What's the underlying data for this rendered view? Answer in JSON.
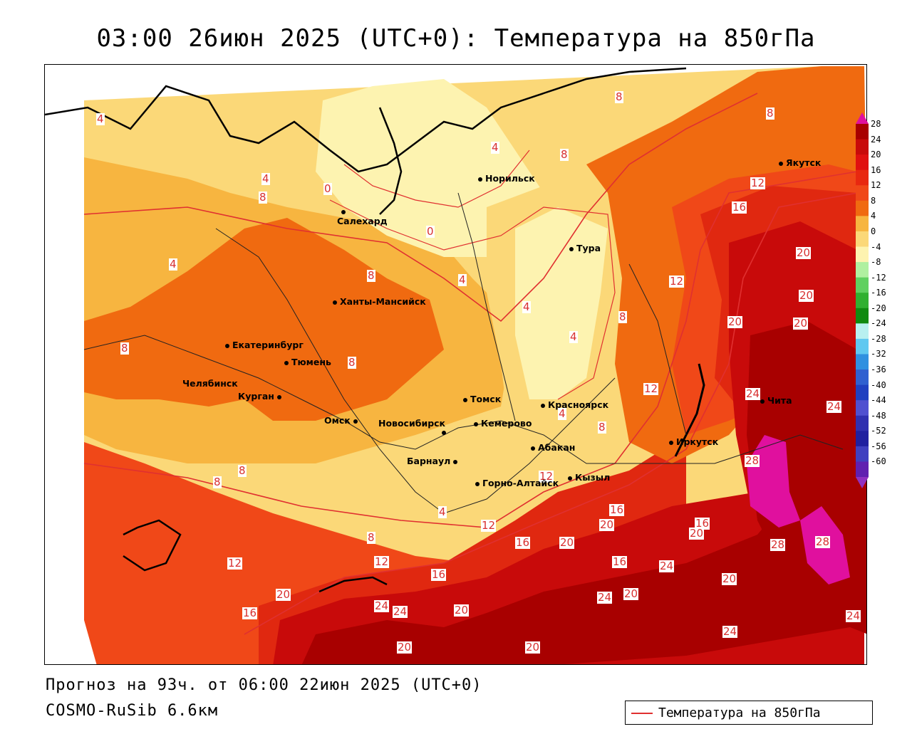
{
  "title": "03:00 26июн 2025 (UTC+0): Температура на 850гПа",
  "forecast_line": "Прогноз на 93ч. от 06:00 22июн 2025 (UTC+0)",
  "model_line": "COSMO-RuSib 6.6км",
  "legend": {
    "label": "Температура на 850гПа",
    "line_color": "#e03030"
  },
  "colors": {
    "t28": "#e0109e",
    "t24": "#a80000",
    "t20": "#c80a0a",
    "t16": "#e02810",
    "t12": "#f04818",
    "t8": "#f06a10",
    "t4": "#f7b540",
    "t0": "#fbd878",
    "tm": "#fdf3b0",
    "isoline": "#e03030"
  },
  "color_scale": {
    "values": [
      "28",
      "24",
      "20",
      "16",
      "12",
      "8",
      "4",
      "0",
      "-4",
      "-8",
      "-12",
      "-16",
      "-20",
      "-24",
      "-28",
      "-32",
      "-36",
      "-40",
      "-44",
      "-48",
      "-52",
      "-56",
      "-60"
    ],
    "colors": [
      "#a80000",
      "#c80a0a",
      "#e01010",
      "#e82810",
      "#f04818",
      "#f06a10",
      "#f7b540",
      "#fbd878",
      "#fdf3b0",
      "#b0f0a0",
      "#60d060",
      "#30b030",
      "#108a10",
      "#b8f0f0",
      "#60c8f0",
      "#3090e0",
      "#3060d0",
      "#2040c0",
      "#5050d0",
      "#3030b0",
      "#2020a0",
      "#4040c0",
      "#6020b0"
    ],
    "top_arrow_color": "#e0109e",
    "bottom_arrow_color": "#9030c0"
  },
  "cities": [
    {
      "name": "Якутск"
    },
    {
      "name": "Норильск"
    },
    {
      "name": "Салехард"
    },
    {
      "name": "Тура"
    },
    {
      "name": "Ханты-Мансийск"
    },
    {
      "name": "Екатеринбург"
    },
    {
      "name": "Тюмень"
    },
    {
      "name": "Челябинск"
    },
    {
      "name": "Курган"
    },
    {
      "name": "Томск"
    },
    {
      "name": "Красноярск"
    },
    {
      "name": "Омск"
    },
    {
      "name": "Новосибирск"
    },
    {
      "name": "Кемерово"
    },
    {
      "name": "Абакан"
    },
    {
      "name": "Иркутск"
    },
    {
      "name": "Чита"
    },
    {
      "name": "Барнаул"
    },
    {
      "name": "Горно-Алтайск"
    },
    {
      "name": "Кызыл"
    }
  ],
  "isoline_labels": [
    "4",
    "8",
    "8",
    "4",
    "8",
    "4",
    "8",
    "0",
    "0",
    "4",
    "12",
    "16",
    "20",
    "20",
    "20",
    "20",
    "12",
    "8",
    "4",
    "4",
    "4",
    "8",
    "8",
    "8",
    "12",
    "24",
    "24",
    "8",
    "8",
    "8",
    "12",
    "28",
    "12",
    "12",
    "16",
    "16",
    "20",
    "20",
    "16",
    "20",
    "16",
    "24",
    "24",
    "20",
    "20",
    "28",
    "28",
    "12",
    "16",
    "16",
    "20",
    "24",
    "24",
    "20",
    "20",
    "20",
    "24",
    "24",
    "8",
    "4",
    "4"
  ]
}
